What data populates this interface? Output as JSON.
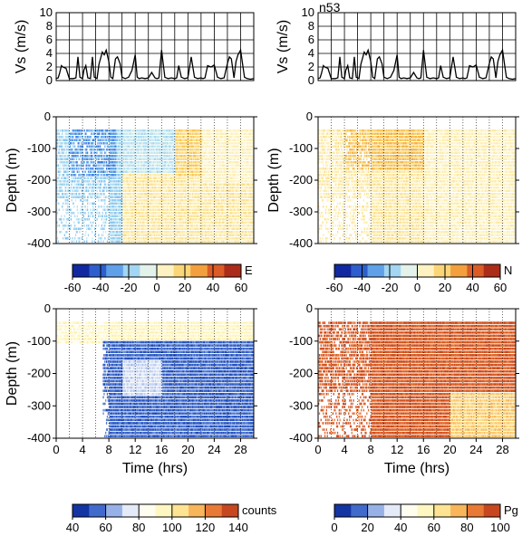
{
  "figure": {
    "station_title": "n53"
  },
  "colormaps": {
    "diverging": [
      "#08108a",
      "#1a3fb8",
      "#3f7de0",
      "#7fc2ef",
      "#c6e9f4",
      "#fffbe0",
      "#fde9a3",
      "#f9c24d",
      "#ec7b2d",
      "#c93d1f",
      "#8c1a10"
    ],
    "counts": [
      "#0a1e8c",
      "#1e4ec0",
      "#7f9fe2",
      "#dfe7f8",
      "#fffdf0",
      "#fff7c0",
      "#fde08a",
      "#f6a64a",
      "#e0622b",
      "#b03017"
    ],
    "pg": [
      "#0a1e8c",
      "#1e4ec0",
      "#7f9fe2",
      "#dfe7f8",
      "#fffdf0",
      "#fff7c0",
      "#fde08a",
      "#f6a64a",
      "#e0622b",
      "#b03017"
    ]
  },
  "chart_data": [
    {
      "id": "vs-left",
      "type": "line",
      "title": "",
      "ylabel": "Vs (m/s)",
      "xlim": [
        0,
        30
      ],
      "ylim": [
        0,
        10
      ],
      "yticks": [
        "0",
        "2",
        "4",
        "6",
        "8",
        "10"
      ],
      "x_gridlines": [
        0,
        2,
        4,
        6,
        8,
        10,
        12,
        14,
        16,
        18,
        20,
        22,
        24,
        26,
        28,
        30
      ],
      "x": [
        0,
        0.3,
        0.5,
        0.8,
        1.0,
        1.5,
        2.0,
        2.3,
        2.6,
        3.0,
        3.3,
        3.6,
        4.0,
        4.2,
        4.5,
        4.8,
        5.2,
        5.5,
        5.8,
        6.2,
        6.5,
        7.0,
        7.3,
        7.6,
        8.0,
        8.3,
        8.6,
        9.0,
        9.3,
        9.7,
        10.0,
        10.5,
        11.0,
        11.5,
        12.0,
        12.3,
        12.6,
        13.0,
        13.5,
        14.0,
        14.5,
        15.0,
        15.3,
        15.6,
        16.0,
        16.5,
        17.0,
        17.5,
        18.0,
        18.3,
        18.6,
        19.0,
        19.5,
        20.0,
        20.5,
        21.0,
        21.5,
        22.0,
        22.3,
        22.6,
        23.0,
        23.5,
        24.0,
        24.5,
        25.0,
        25.5,
        26.0,
        26.3,
        26.6,
        27.0,
        27.3,
        27.6,
        28.0,
        28.3,
        28.6,
        29.0,
        29.5,
        30.0
      ],
      "y": [
        0.3,
        0.4,
        1.0,
        2.2,
        2.0,
        1.8,
        0.3,
        0.3,
        0.3,
        0.4,
        3.5,
        0.5,
        0.3,
        1.5,
        2.2,
        0.4,
        0.3,
        3.5,
        0.5,
        0.3,
        2.4,
        4.2,
        3.8,
        4.5,
        2.8,
        0.5,
        0.3,
        3.2,
        3.5,
        2.5,
        0.5,
        0.3,
        0.5,
        1.5,
        3.8,
        0.5,
        0.3,
        0.4,
        0.3,
        0.4,
        1.2,
        0.4,
        0.3,
        0.4,
        4.5,
        0.5,
        0.3,
        0.4,
        0.3,
        0.4,
        2.2,
        0.5,
        0.3,
        0.4,
        3.5,
        0.5,
        0.3,
        0.4,
        0.3,
        0.4,
        2.2,
        2.0,
        2.3,
        0.5,
        0.3,
        0.4,
        2.5,
        3.5,
        3.2,
        0.4,
        2.8,
        3.8,
        4.5,
        2.5,
        0.5,
        0.3,
        0.2,
        0.3
      ]
    },
    {
      "id": "vs-right",
      "type": "line",
      "title": "n53",
      "ylabel": "Vs (m/s)",
      "xlim": [
        0,
        30
      ],
      "ylim": [
        0,
        10
      ],
      "yticks": [
        "0",
        "2",
        "4",
        "6",
        "8",
        "10"
      ],
      "x_gridlines": [
        0,
        2,
        4,
        6,
        8,
        10,
        12,
        14,
        16,
        18,
        20,
        22,
        24,
        26,
        28,
        30
      ],
      "x": [
        0,
        0.3,
        0.5,
        0.8,
        1.0,
        1.5,
        2.0,
        2.3,
        2.6,
        3.0,
        3.3,
        3.6,
        4.0,
        4.2,
        4.5,
        4.8,
        5.2,
        5.5,
        5.8,
        6.2,
        6.5,
        7.0,
        7.3,
        7.6,
        8.0,
        8.3,
        8.6,
        9.0,
        9.3,
        9.7,
        10.0,
        10.5,
        11.0,
        11.5,
        12.0,
        12.3,
        12.6,
        13.0,
        13.5,
        14.0,
        14.5,
        15.0,
        15.3,
        15.6,
        16.0,
        16.5,
        17.0,
        17.5,
        18.0,
        18.3,
        18.6,
        19.0,
        19.5,
        20.0,
        20.5,
        21.0,
        21.5,
        22.0,
        22.3,
        22.6,
        23.0,
        23.5,
        24.0,
        24.5,
        25.0,
        25.5,
        26.0,
        26.3,
        26.6,
        27.0,
        27.3,
        27.6,
        28.0,
        28.3,
        28.6,
        29.0,
        29.5,
        30.0
      ],
      "y": [
        0.3,
        0.4,
        1.0,
        2.2,
        2.0,
        1.8,
        0.3,
        0.3,
        0.3,
        0.4,
        3.5,
        0.5,
        0.3,
        1.5,
        2.2,
        0.4,
        0.3,
        3.5,
        0.5,
        0.3,
        2.4,
        4.2,
        3.8,
        4.5,
        2.8,
        0.5,
        0.3,
        3.2,
        3.5,
        2.5,
        0.5,
        0.3,
        0.5,
        1.5,
        3.8,
        0.5,
        0.3,
        0.4,
        0.3,
        0.4,
        1.2,
        0.4,
        0.3,
        0.4,
        4.5,
        0.5,
        0.3,
        0.4,
        0.3,
        0.4,
        2.2,
        0.5,
        0.3,
        0.4,
        3.5,
        0.5,
        0.3,
        0.4,
        0.3,
        0.4,
        2.2,
        2.0,
        2.3,
        0.5,
        0.3,
        0.4,
        2.5,
        3.5,
        3.2,
        0.4,
        2.8,
        3.8,
        4.5,
        2.5,
        0.5,
        0.3,
        0.2,
        0.3
      ]
    },
    {
      "id": "east",
      "type": "heatmap",
      "ylabel": "Depth (m)",
      "xlim": [
        0,
        30
      ],
      "ylim": [
        -400,
        0
      ],
      "yticks": [
        "0",
        "-100",
        "-200",
        "-300",
        "-400"
      ],
      "colorbar": {
        "label": "E",
        "range": [
          -60,
          60
        ],
        "ticks": [
          "-60",
          "-40",
          "-20",
          "0",
          "20",
          "40",
          "60"
        ],
        "cmap": "diverging"
      },
      "field_description_regions": [
        {
          "t": [
            0,
            10
          ],
          "depth": [
            -400,
            -40
          ],
          "value": -18
        },
        {
          "t": [
            2,
            9
          ],
          "depth": [
            -180,
            -40
          ],
          "value": -30
        },
        {
          "t": [
            10,
            18
          ],
          "depth": [
            -180,
            -40
          ],
          "value": -12
        },
        {
          "t": [
            10,
            30
          ],
          "depth": [
            -400,
            -180
          ],
          "value": 10
        },
        {
          "t": [
            18,
            30
          ],
          "depth": [
            -180,
            -40
          ],
          "value": 18
        },
        {
          "t": [
            22,
            30
          ],
          "depth": [
            -200,
            -40
          ],
          "value": 5
        }
      ]
    },
    {
      "id": "north",
      "type": "heatmap",
      "ylabel": "Depth (m)",
      "xlim": [
        0,
        30
      ],
      "ylim": [
        -400,
        0
      ],
      "yticks": [
        "0",
        "-100",
        "-200",
        "-300",
        "-400"
      ],
      "colorbar": {
        "label": "N",
        "range": [
          -60,
          60
        ],
        "ticks": [
          "-60",
          "-40",
          "-20",
          "0",
          "20",
          "40",
          "60"
        ],
        "cmap": "diverging"
      },
      "field_description_regions": [
        {
          "t": [
            0,
            30
          ],
          "depth": [
            -400,
            -40
          ],
          "value": 10
        },
        {
          "t": [
            4,
            16
          ],
          "depth": [
            -160,
            -40
          ],
          "value": 22
        },
        {
          "t": [
            16,
            30
          ],
          "depth": [
            -400,
            -40
          ],
          "value": 6
        }
      ]
    },
    {
      "id": "counts",
      "type": "heatmap",
      "ylabel": "Depth (m)",
      "xlabel": "Time (hrs)",
      "xlim": [
        0,
        30
      ],
      "ylim": [
        -400,
        0
      ],
      "xticks": [
        "0",
        "4",
        "8",
        "12",
        "16",
        "20",
        "24",
        "28"
      ],
      "yticks": [
        "0",
        "-100",
        "-200",
        "-300",
        "-400"
      ],
      "colorbar": {
        "label": "counts",
        "range": [
          40,
          140
        ],
        "ticks": [
          "40",
          "60",
          "80",
          "100",
          "120",
          "140"
        ],
        "cmap": "counts"
      },
      "field_description_regions": [
        {
          "t": [
            0,
            30
          ],
          "depth": [
            -40,
            -40
          ],
          "value": 125
        },
        {
          "t": [
            0,
            30
          ],
          "depth": [
            -100,
            -40
          ],
          "value": 95
        },
        {
          "t": [
            7,
            30
          ],
          "depth": [
            -400,
            -100
          ],
          "value": 55
        },
        {
          "t": [
            10,
            16
          ],
          "depth": [
            -260,
            -160
          ],
          "value": 72
        }
      ]
    },
    {
      "id": "pg",
      "type": "heatmap",
      "ylabel": "",
      "xlabel": "Time (hrs)",
      "xlim": [
        0,
        30
      ],
      "ylim": [
        -400,
        0
      ],
      "xticks": [
        "0",
        "4",
        "8",
        "12",
        "16",
        "20",
        "24",
        "28"
      ],
      "yticks": [
        "0",
        "-100",
        "-200",
        "-300",
        "-400"
      ],
      "colorbar": {
        "label": "Pg",
        "range": [
          0,
          100
        ],
        "ticks": [
          "0",
          "20",
          "40",
          "60",
          "80",
          "100"
        ],
        "cmap": "pg"
      },
      "field_description_regions": [
        {
          "t": [
            0,
            30
          ],
          "depth": [
            -400,
            -40
          ],
          "value": 90
        },
        {
          "t": [
            20,
            30
          ],
          "depth": [
            -400,
            -260
          ],
          "value": 70
        }
      ]
    }
  ]
}
